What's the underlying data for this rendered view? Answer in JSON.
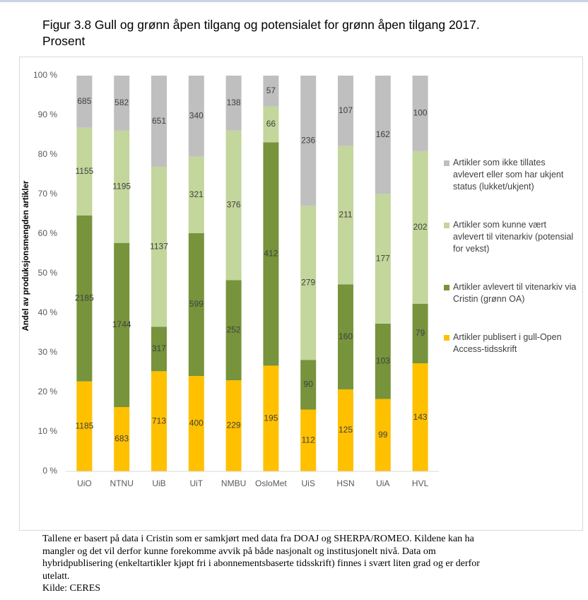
{
  "chart_data": {
    "type": "bar",
    "stack": "percent",
    "title": [
      "Figur 3.8 Gull og grønn åpen tilgang og potensialet for grønn åpen tilgang 2017.",
      "Prosent"
    ],
    "y_label": "Andel av produksjonsmengden artikler",
    "categories": [
      "UiO",
      "NTNU",
      "UiB",
      "UiT",
      "NMBU",
      "OsloMet",
      "UiS",
      "HSN",
      "UiA",
      "HVL"
    ],
    "series": [
      {
        "name": "Artikler publisert i gull-Open Access-tidsskrift",
        "color": "#ffc000",
        "values": [
          1185,
          683,
          713,
          400,
          229,
          195,
          112,
          125,
          99,
          143
        ]
      },
      {
        "name": "Artikler avlevert til vitenarkiv via Cristin (grønn OA)",
        "color": "#77933c",
        "values": [
          2185,
          1744,
          317,
          599,
          252,
          412,
          90,
          160,
          103,
          79
        ]
      },
      {
        "name": "Artikler som kunne vært avlevert til vitenarkiv (potensial for vekst)",
        "color": "#c3d69b",
        "values": [
          1155,
          1195,
          1137,
          321,
          376,
          66,
          279,
          211,
          177,
          202
        ]
      },
      {
        "name": "Artikler som ikke tillates avlevert eller som har ukjent status (lukket/ukjent)",
        "color": "#bfbfbf",
        "values": [
          685,
          582,
          651,
          340,
          138,
          57,
          236,
          107,
          162,
          100
        ]
      }
    ],
    "ylim": [
      0,
      100
    ],
    "yticks": [
      {
        "value": 0,
        "label": "0 %"
      },
      {
        "value": 10,
        "label": "10 %"
      },
      {
        "value": 20,
        "label": "20 %"
      },
      {
        "value": 30,
        "label": "30 %"
      },
      {
        "value": 40,
        "label": "40 %"
      },
      {
        "value": 50,
        "label": "50 %"
      },
      {
        "value": 60,
        "label": "60 %"
      },
      {
        "value": 70,
        "label": "70 %"
      },
      {
        "value": 80,
        "label": "80 %"
      },
      {
        "value": 90,
        "label": "90 %"
      },
      {
        "value": 100,
        "label": "100 %"
      }
    ],
    "grid": false
  },
  "note": [
    "Tallene er basert på data i Cristin som er samkjørt med data fra DOAJ og SHERPA/ROMEO. Kildene kan ha",
    "mangler og det vil derfor kunne forekomme avvik på både nasjonalt og institusjonelt nivå. Data om",
    "hybridpublisering (enkeltartikler kjøpt fri i abonnementsbaserte tidsskrift) finnes i svært liten grad og er derfor",
    "utelatt.",
    "Kilde: CERES"
  ]
}
